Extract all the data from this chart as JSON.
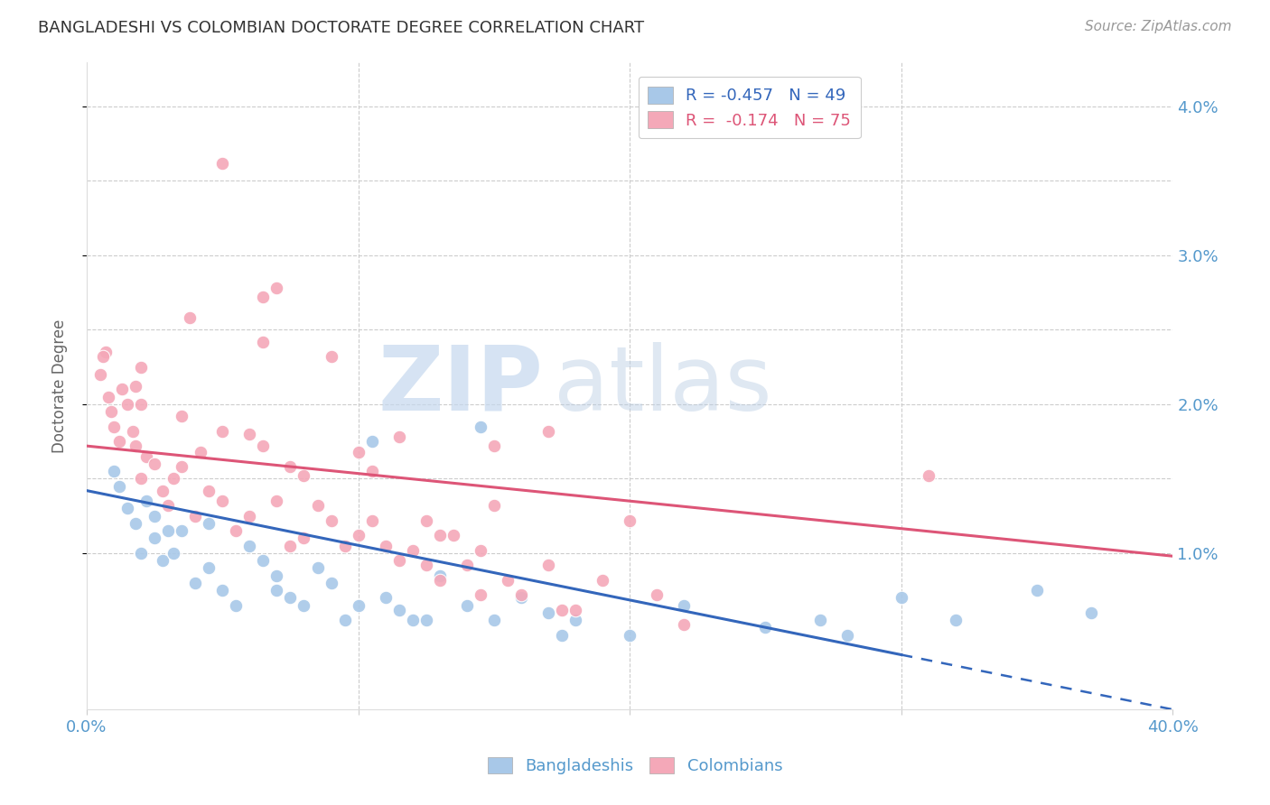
{
  "title": "BANGLADESHI VS COLOMBIAN DOCTORATE DEGREE CORRELATION CHART",
  "source": "Source: ZipAtlas.com",
  "ylabel": "Doctorate Degree",
  "xlim": [
    0.0,
    40.0
  ],
  "ylim": [
    -0.05,
    4.3
  ],
  "blue_R": -0.457,
  "blue_N": 49,
  "pink_R": -0.174,
  "pink_N": 75,
  "blue_color": "#a8c8e8",
  "pink_color": "#f4a8b8",
  "blue_line_color": "#3366bb",
  "pink_line_color": "#dd5577",
  "background_color": "#ffffff",
  "grid_color": "#cccccc",
  "title_color": "#333333",
  "axis_label_color": "#5599cc",
  "blue_line_start_x": 0.0,
  "blue_line_start_y": 1.42,
  "blue_line_end_x": 40.0,
  "blue_line_end_y": -0.05,
  "blue_line_solid_end_x": 30.0,
  "pink_line_start_x": 0.0,
  "pink_line_start_y": 1.72,
  "pink_line_end_x": 40.0,
  "pink_line_end_y": 0.98,
  "blue_x": [
    1.0,
    1.2,
    1.5,
    1.8,
    2.0,
    2.2,
    2.5,
    2.5,
    2.8,
    3.0,
    3.2,
    3.5,
    4.0,
    4.5,
    4.5,
    5.0,
    5.5,
    6.0,
    6.5,
    7.0,
    7.0,
    7.5,
    8.0,
    8.5,
    9.0,
    9.5,
    10.0,
    10.5,
    11.0,
    11.5,
    12.0,
    12.5,
    13.0,
    14.0,
    15.0,
    16.0,
    17.0,
    17.5,
    18.0,
    20.0,
    22.0,
    25.0,
    27.0,
    28.0,
    30.0,
    32.0,
    35.0,
    37.0,
    14.5
  ],
  "blue_y": [
    1.55,
    1.45,
    1.3,
    1.2,
    1.0,
    1.35,
    1.1,
    1.25,
    0.95,
    1.15,
    1.0,
    1.15,
    0.8,
    1.2,
    0.9,
    0.75,
    0.65,
    1.05,
    0.95,
    0.85,
    0.75,
    0.7,
    0.65,
    0.9,
    0.8,
    0.55,
    0.65,
    1.75,
    0.7,
    0.62,
    0.55,
    0.55,
    0.85,
    0.65,
    0.55,
    0.7,
    0.6,
    0.45,
    0.55,
    0.45,
    0.65,
    0.5,
    0.55,
    0.45,
    0.7,
    0.55,
    0.75,
    0.6,
    1.85
  ],
  "pink_x": [
    0.5,
    0.7,
    0.8,
    0.9,
    1.0,
    1.2,
    1.3,
    1.5,
    1.7,
    1.8,
    2.0,
    2.0,
    2.2,
    2.5,
    2.8,
    3.0,
    3.2,
    3.5,
    3.8,
    4.0,
    4.2,
    4.5,
    5.0,
    5.0,
    5.5,
    6.0,
    6.0,
    6.5,
    7.0,
    7.0,
    7.5,
    8.0,
    8.5,
    9.0,
    9.5,
    10.0,
    10.5,
    11.0,
    11.5,
    12.0,
    12.5,
    13.0,
    13.5,
    14.0,
    14.5,
    15.0,
    15.5,
    16.0,
    17.0,
    18.0,
    19.0,
    20.0,
    21.0,
    22.0,
    6.5,
    7.5,
    9.0,
    10.0,
    11.5,
    13.0,
    15.0,
    17.0,
    2.0,
    3.5,
    5.0,
    6.5,
    8.0,
    10.5,
    12.5,
    14.5,
    17.5,
    0.6,
    1.8,
    31.0
  ],
  "pink_y": [
    2.2,
    2.35,
    2.05,
    1.95,
    1.85,
    1.75,
    2.1,
    2.0,
    1.82,
    1.72,
    1.5,
    2.25,
    1.65,
    1.6,
    1.42,
    1.32,
    1.5,
    1.58,
    2.58,
    1.25,
    1.68,
    1.42,
    1.35,
    3.62,
    1.15,
    1.25,
    1.8,
    2.72,
    2.78,
    1.35,
    1.05,
    1.1,
    1.32,
    1.22,
    1.05,
    1.12,
    1.55,
    1.05,
    0.95,
    1.02,
    1.22,
    0.82,
    1.12,
    0.92,
    1.02,
    1.32,
    0.82,
    0.72,
    0.92,
    0.62,
    0.82,
    1.22,
    0.72,
    0.52,
    2.42,
    1.58,
    2.32,
    1.68,
    1.78,
    1.12,
    1.72,
    1.82,
    2.0,
    1.92,
    1.82,
    1.72,
    1.52,
    1.22,
    0.92,
    0.72,
    0.62,
    2.32,
    2.12,
    1.52
  ]
}
